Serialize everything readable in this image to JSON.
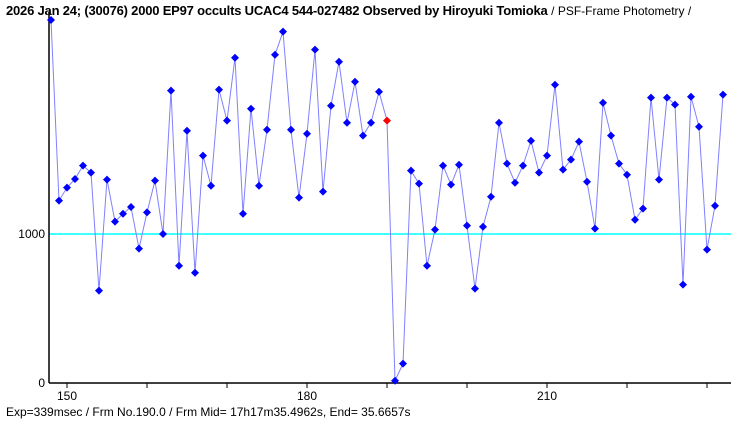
{
  "chart_data": {
    "type": "line",
    "title": "2026 Jan 24; (30076) 2000 EP97 occults UCAC4 544-027482 Observed by Hiroyuki Tomioka",
    "subtitle": "/ PSF-Frame Photometry /",
    "xlabel": "",
    "ylabel": "",
    "x_start": 148,
    "x_step": 1,
    "values": [
      2436,
      1224,
      1311,
      1369,
      1459,
      1412,
      620,
      1365,
      1083,
      1136,
      1181,
      902,
      1145,
      1358,
      1000,
      1962,
      787,
      1693,
      740,
      1526,
      1324,
      1969,
      1761,
      2183,
      1136,
      1841,
      1324,
      1700,
      2203,
      2358,
      1700,
      1244,
      1673,
      2237,
      1284,
      1861,
      2156,
      1747,
      2022,
      1660,
      1747,
      1955,
      1761,
      15,
      130,
      1425,
      1338,
      787,
      1029,
      1459,
      1331,
      1465,
      1056,
      633,
      1049,
      1250,
      1747,
      1472,
      1344,
      1459,
      1626,
      1412,
      1526,
      2002,
      1432,
      1499,
      1620,
      1351,
      1036,
      1881,
      1660,
      1472,
      1398,
      1096,
      1170,
      1915,
      1365,
      1915,
      1868,
      660,
      1921,
      1720,
      895,
      1190,
      1935
    ],
    "highlight_frame": 190,
    "reference_level": 1000,
    "xlim": [
      147.75,
      232.9
    ],
    "ylim": [
      0,
      2570
    ],
    "x_ticks": [
      150,
      160,
      170,
      180,
      190,
      200,
      210,
      220,
      230
    ],
    "x_tick_labels": [
      "150",
      "180",
      "210"
    ],
    "x_tick_label_values": [
      150,
      180,
      210
    ],
    "y_tick_labels": [
      "0",
      "1000"
    ],
    "y_tick_values": [
      0,
      1000
    ],
    "colors": {
      "line": "#8080ff",
      "point": "#0000ff",
      "highlight": "#ff0000",
      "reference": "#00ffff",
      "axis": "#000000"
    }
  },
  "header": {
    "title": "2026 Jan 24; (30076) 2000 EP97 occults UCAC4 544-027482 Observed by Hiroyuki Tomioka",
    "subtitle": "/ PSF-Frame Photometry /"
  },
  "footer": {
    "info": "Exp=339msec / Frm No.190.0 / Frm Mid= 17h17m35.4962s,  End= 35.6657s"
  }
}
